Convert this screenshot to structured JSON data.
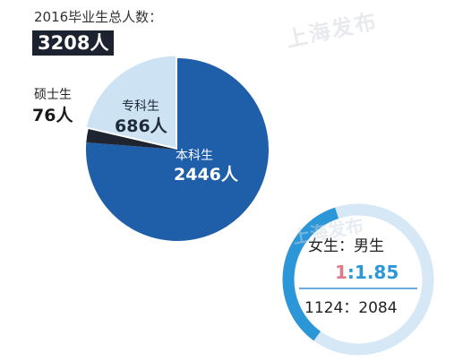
{
  "header": {
    "total_label": "2016毕业生总人数：",
    "total_value": "3208人"
  },
  "watermark": "上海发布",
  "colors": {
    "benke": "#1f5ea8",
    "zhuanke": "#cde3f3",
    "shuoshi": "#1e2430",
    "ring_track": "#d6e8f6",
    "ring_fill": "#2c97d8",
    "ratio_one": "#e07a8a",
    "ratio_rest": "#2c97d8"
  },
  "chart_data": [
    {
      "type": "pie",
      "title": "2016毕业生总人数：",
      "total": 3208,
      "slices": [
        {
          "name": "本科生",
          "value": 2446,
          "label": "2446人"
        },
        {
          "name": "硕士生",
          "value": 76,
          "label": "76人"
        },
        {
          "name": "专科生",
          "value": 686,
          "label": "686人"
        }
      ]
    },
    {
      "type": "pie",
      "title": "女生：男生",
      "ratio_prefix": "1",
      "ratio_suffix": ":1.85",
      "counts_label": "1124：2084",
      "slices": [
        {
          "name": "女生",
          "value": 1124
        },
        {
          "name": "男生",
          "value": 2084
        }
      ]
    }
  ]
}
